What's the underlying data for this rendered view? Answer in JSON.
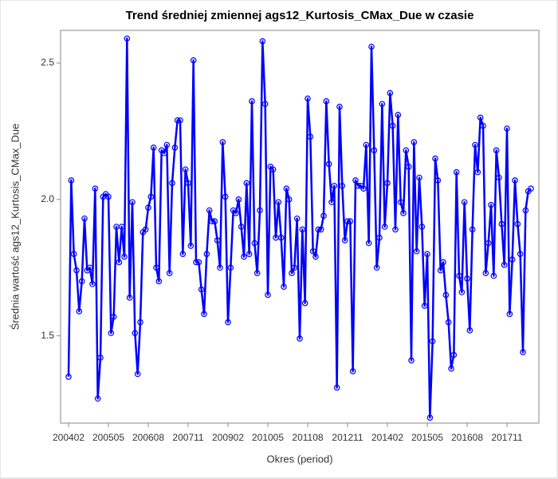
{
  "chart_data": {
    "type": "line",
    "title": "Trend średniej zmiennej ags12_Kurtosis_CMax_Due w czasie",
    "x_label": "Okres (period)",
    "y_label": "Średnia wartość ags12_Kurtosis_CMax_Due",
    "categories": [
      "200402",
      null,
      null,
      null,
      null,
      null,
      null,
      null,
      null,
      null,
      null,
      null,
      null,
      null,
      null,
      "200505",
      null,
      null,
      null,
      null,
      null,
      null,
      null,
      null,
      null,
      null,
      null,
      null,
      null,
      null,
      "200608",
      null,
      null,
      null,
      null,
      null,
      null,
      null,
      null,
      null,
      null,
      null,
      null,
      null,
      null,
      "200711",
      null,
      null,
      null,
      null,
      null,
      null,
      null,
      null,
      null,
      null,
      null,
      null,
      null,
      null,
      "200902",
      null,
      null,
      null,
      null,
      null,
      null,
      null,
      null,
      null,
      null,
      null,
      null,
      null,
      null,
      "201005",
      null,
      null,
      null,
      null,
      null,
      null,
      null,
      null,
      null,
      null,
      null,
      null,
      null,
      null,
      "201108",
      null,
      null,
      null,
      null,
      null,
      null,
      null,
      null,
      null,
      null,
      null,
      null,
      null,
      null,
      "201211",
      null,
      null,
      null,
      null,
      null,
      null,
      null,
      null,
      null,
      null,
      null,
      null,
      null,
      null,
      "201402",
      null,
      null,
      null,
      null,
      null,
      null,
      null,
      null,
      null,
      null,
      null,
      null,
      null,
      null,
      "201505",
      null,
      null,
      null,
      null,
      null,
      null,
      null,
      null,
      null,
      null,
      null,
      null,
      null,
      null,
      "201608",
      null,
      null,
      null,
      null,
      null,
      null,
      null,
      null,
      null,
      null,
      null,
      null,
      null,
      null,
      "201711",
      null,
      null,
      null,
      null,
      null,
      null,
      null,
      null,
      null
    ],
    "series": [
      {
        "color": "#0000ff",
        "values": [
          1.35,
          2.07,
          1.8,
          1.74,
          1.59,
          1.7,
          1.93,
          1.74,
          1.75,
          1.69,
          2.04,
          1.27,
          1.42,
          2.01,
          2.02,
          2.01,
          1.51,
          1.57,
          1.9,
          1.77,
          1.9,
          1.79,
          2.59,
          1.64,
          1.99,
          1.51,
          1.36,
          1.55,
          1.88,
          1.89,
          1.97,
          2.01,
          2.19,
          1.75,
          1.7,
          2.18,
          2.17,
          2.2,
          1.73,
          2.06,
          2.19,
          2.29,
          2.29,
          1.8,
          2.11,
          2.06,
          1.83,
          2.51,
          1.77,
          1.77,
          1.67,
          1.58,
          1.8,
          1.96,
          1.92,
          1.92,
          1.85,
          1.75,
          2.21,
          2.01,
          1.55,
          1.75,
          1.96,
          1.95,
          2.0,
          1.9,
          1.79,
          2.06,
          1.8,
          2.36,
          1.84,
          1.73,
          1.96,
          2.58,
          2.35,
          1.65,
          2.12,
          2.11,
          1.86,
          1.99,
          1.86,
          1.68,
          2.04,
          2.0,
          1.73,
          1.75,
          1.93,
          1.49,
          1.89,
          1.62,
          2.37,
          2.23,
          1.81,
          1.79,
          1.89,
          1.89,
          1.94,
          2.36,
          2.13,
          1.99,
          2.05,
          1.31,
          2.34,
          2.05,
          1.85,
          1.92,
          1.92,
          1.37,
          2.07,
          2.05,
          2.05,
          2.04,
          2.2,
          1.84,
          2.56,
          2.18,
          1.75,
          1.86,
          2.35,
          1.9,
          2.06,
          2.39,
          2.27,
          1.89,
          2.31,
          1.99,
          1.95,
          2.18,
          2.12,
          1.41,
          2.21,
          1.81,
          2.08,
          1.9,
          1.61,
          1.8,
          1.2,
          1.48,
          2.15,
          2.07,
          1.74,
          1.77,
          1.65,
          1.55,
          1.38,
          1.43,
          2.1,
          1.72,
          1.66,
          1.99,
          1.71,
          1.52,
          1.89,
          2.2,
          2.1,
          2.3,
          2.27,
          1.73,
          1.84,
          1.98,
          1.72,
          2.18,
          2.08,
          1.91,
          1.76,
          2.26,
          1.58,
          1.78,
          2.07,
          1.91,
          1.8,
          1.44,
          1.96,
          2.03,
          2.04
        ]
      }
    ],
    "ylim": [
      1.18,
      2.62
    ],
    "yticks": [
      1.5,
      {
        "value": 2,
        "label": "2.0"
      },
      2.5
    ]
  }
}
